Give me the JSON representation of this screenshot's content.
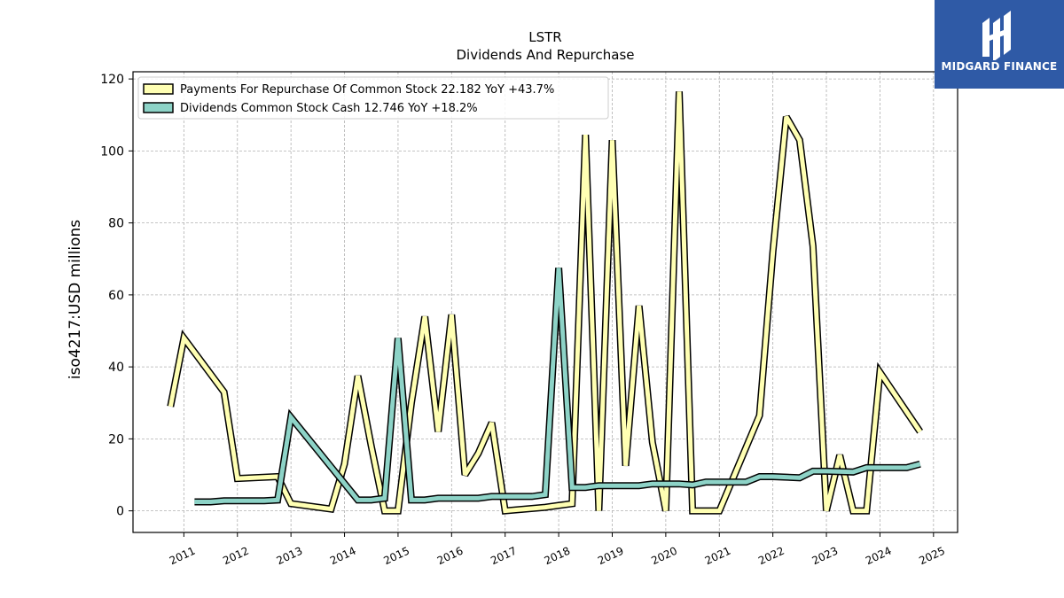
{
  "brand": {
    "name": "MIDGARD FINANCE",
    "bg_color": "#2f5aa6"
  },
  "chart_data": {
    "type": "line",
    "title": "LSTR",
    "subtitle": "Dividends And Repurchase",
    "ylabel": "iso4217:USD  millions",
    "xlabel": "",
    "ylim": [
      -6,
      122
    ],
    "xlim": [
      2010.05,
      2025.45
    ],
    "yticks": [
      0,
      20,
      40,
      60,
      80,
      100,
      120
    ],
    "xticks": [
      "2011",
      "2012",
      "2013",
      "2014",
      "2015",
      "2016",
      "2017",
      "2018",
      "2019",
      "2020",
      "2021",
      "2022",
      "2023",
      "2024",
      "2025"
    ],
    "grid": true,
    "legend_position": "top-left",
    "series": [
      {
        "name": "Payments For Repurchase Of Common Stock  22.182 YoY +43.7%",
        "color": "#ffffb3",
        "points": [
          [
            2010.75,
            29
          ],
          [
            2011.0,
            48
          ],
          [
            2011.75,
            33
          ],
          [
            2012.0,
            9
          ],
          [
            2012.75,
            9.5
          ],
          [
            2013.0,
            2
          ],
          [
            2013.75,
            0.5
          ],
          [
            2014.0,
            13
          ],
          [
            2014.25,
            37.5
          ],
          [
            2014.5,
            18
          ],
          [
            2014.75,
            0
          ],
          [
            2015.0,
            0
          ],
          [
            2015.25,
            30
          ],
          [
            2015.5,
            54
          ],
          [
            2015.75,
            22
          ],
          [
            2016.0,
            54.5
          ],
          [
            2016.25,
            10
          ],
          [
            2016.5,
            16
          ],
          [
            2016.75,
            24.5
          ],
          [
            2017.0,
            0
          ],
          [
            2017.75,
            1
          ],
          [
            2018.0,
            1.5
          ],
          [
            2018.25,
            2
          ],
          [
            2018.5,
            104.5
          ],
          [
            2018.75,
            0
          ],
          [
            2019.0,
            103
          ],
          [
            2019.25,
            12.5
          ],
          [
            2019.5,
            57
          ],
          [
            2019.75,
            19
          ],
          [
            2020.0,
            0
          ],
          [
            2020.25,
            116.5
          ],
          [
            2020.5,
            0
          ],
          [
            2020.75,
            0
          ],
          [
            2021.0,
            0
          ],
          [
            2021.75,
            26.5
          ],
          [
            2022.0,
            72
          ],
          [
            2022.25,
            109.5
          ],
          [
            2022.5,
            103
          ],
          [
            2022.75,
            73.5
          ],
          [
            2023.0,
            0
          ],
          [
            2023.25,
            15.5
          ],
          [
            2023.5,
            0
          ],
          [
            2023.75,
            0
          ],
          [
            2024.0,
            38.5
          ],
          [
            2024.75,
            22
          ]
        ]
      },
      {
        "name": "Dividends Common Stock Cash  12.746 YoY +18.2%",
        "color": "#8dd3c7",
        "points": [
          [
            2011.2,
            2.5
          ],
          [
            2011.5,
            2.5
          ],
          [
            2011.75,
            2.8
          ],
          [
            2012.0,
            2.8
          ],
          [
            2012.5,
            2.8
          ],
          [
            2012.75,
            3
          ],
          [
            2013.0,
            26
          ],
          [
            2014.25,
            3
          ],
          [
            2014.5,
            3
          ],
          [
            2014.75,
            3.5
          ],
          [
            2015.0,
            48
          ],
          [
            2015.25,
            3
          ],
          [
            2015.5,
            3
          ],
          [
            2015.75,
            3.5
          ],
          [
            2016.0,
            3.5
          ],
          [
            2016.5,
            3.5
          ],
          [
            2016.75,
            4
          ],
          [
            2017.0,
            4
          ],
          [
            2017.5,
            4
          ],
          [
            2017.75,
            4.5
          ],
          [
            2018.0,
            67.5
          ],
          [
            2018.25,
            6.5
          ],
          [
            2018.5,
            6.5
          ],
          [
            2018.75,
            7
          ],
          [
            2019.0,
            7
          ],
          [
            2019.5,
            7
          ],
          [
            2019.75,
            7.5
          ],
          [
            2020.0,
            7.5
          ],
          [
            2020.25,
            7.5
          ],
          [
            2020.5,
            7.2
          ],
          [
            2020.75,
            8
          ],
          [
            2021.0,
            8
          ],
          [
            2021.5,
            8
          ],
          [
            2021.75,
            9.5
          ],
          [
            2022.0,
            9.5
          ],
          [
            2022.5,
            9.2
          ],
          [
            2022.75,
            11
          ],
          [
            2023.0,
            11
          ],
          [
            2023.5,
            10.8
          ],
          [
            2023.75,
            12
          ],
          [
            2024.0,
            12
          ],
          [
            2024.5,
            12
          ],
          [
            2024.75,
            13
          ]
        ]
      }
    ]
  }
}
